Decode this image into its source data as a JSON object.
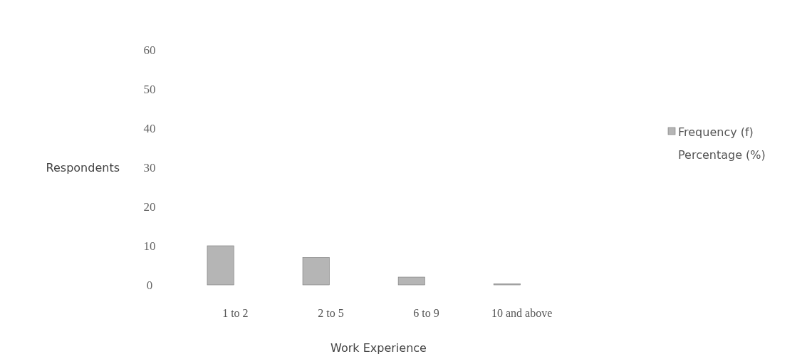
{
  "chart_data": {
    "type": "bar",
    "xlabel": "Work Experience",
    "ylabel": "Respondents",
    "categories": [
      "1 to 2",
      "2 to 5",
      "6 to 9",
      "10 and above"
    ],
    "series": [
      {
        "name": "Frequency (f)",
        "color": "#b5b5b5",
        "values": [
          10,
          7,
          2,
          0.3
        ]
      },
      {
        "name": "Percentage (%)",
        "values": [
          null,
          null,
          null,
          null
        ]
      }
    ],
    "ylim": [
      0,
      60
    ],
    "yticks": [
      0,
      10,
      20,
      30,
      40,
      50,
      60
    ],
    "grid": false,
    "legend": "right"
  }
}
